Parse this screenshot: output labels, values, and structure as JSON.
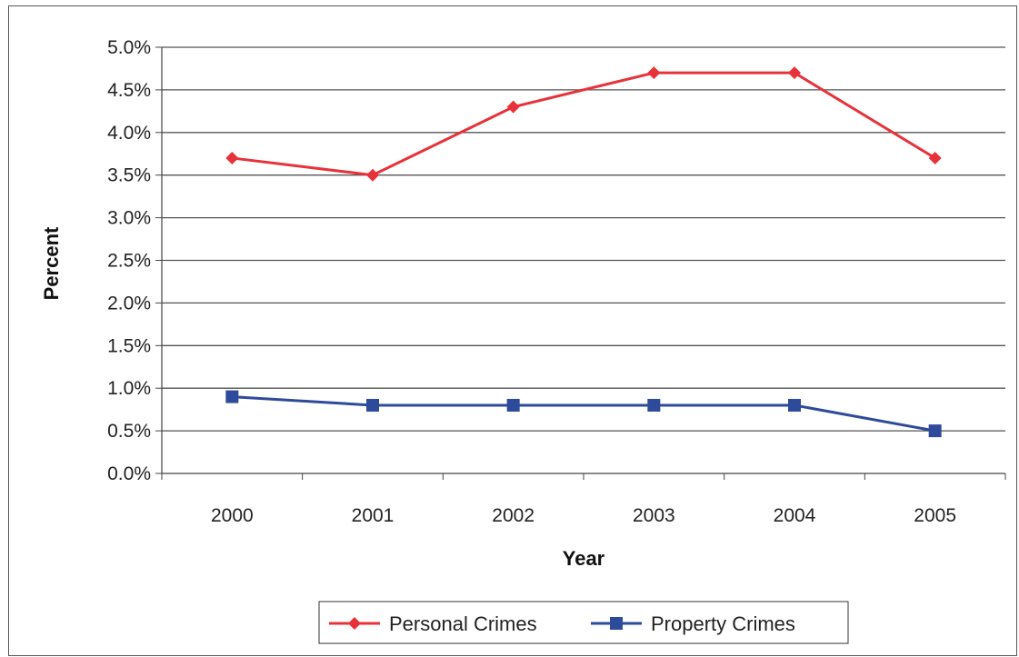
{
  "chart_data": {
    "type": "line",
    "xlabel": "Year",
    "ylabel": "Percent",
    "categories": [
      "2000",
      "2001",
      "2002",
      "2003",
      "2004",
      "2005"
    ],
    "ylim": [
      0,
      5.0
    ],
    "yticks": [
      "0.0%",
      "0.5%",
      "1.0%",
      "1.5%",
      "2.0%",
      "2.5%",
      "3.0%",
      "3.5%",
      "4.0%",
      "4.5%",
      "5.0%"
    ],
    "grid": true,
    "legend_position": "bottom",
    "series": [
      {
        "name": "Personal Crimes",
        "color": "#e8323a",
        "marker": "diamond",
        "values": [
          3.7,
          3.5,
          4.3,
          4.7,
          4.7,
          3.7
        ]
      },
      {
        "name": "Property Crimes",
        "color": "#2e4a9a",
        "marker": "square",
        "values": [
          0.9,
          0.8,
          0.8,
          0.8,
          0.8,
          0.5
        ]
      }
    ]
  }
}
